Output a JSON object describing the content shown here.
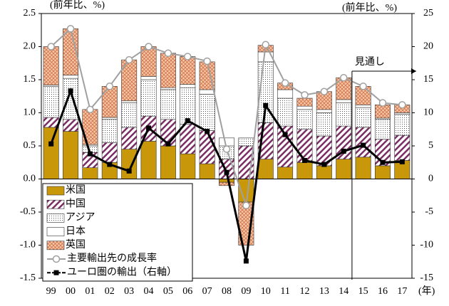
{
  "chart_data": {
    "type": "bar",
    "y_label": "(前年比、%)",
    "y2_label": "(前年比、%)",
    "x_label": "(年)",
    "annotation": "見通し",
    "categories": [
      "99",
      "00",
      "01",
      "02",
      "03",
      "04",
      "05",
      "06",
      "07",
      "08",
      "09",
      "10",
      "11",
      "12",
      "13",
      "14",
      "15",
      "16",
      "17"
    ],
    "series": [
      {
        "name": "米国",
        "color": "#c8980a",
        "pattern": "solid",
        "values": [
          0.78,
          0.72,
          0.17,
          0.25,
          0.45,
          0.57,
          0.5,
          0.38,
          0.23,
          -0.05,
          -0.35,
          0.3,
          0.18,
          0.25,
          0.2,
          0.3,
          0.33,
          0.2,
          0.28
        ]
      },
      {
        "name": "中国",
        "color": "#7a2e64",
        "pattern": "hatch",
        "values": [
          0.15,
          0.18,
          0.23,
          0.3,
          0.33,
          0.38,
          0.4,
          0.45,
          0.5,
          0.3,
          0.5,
          0.55,
          0.62,
          0.5,
          0.45,
          0.5,
          0.45,
          0.4,
          0.38
        ]
      },
      {
        "name": "アジア",
        "color": "#555555",
        "pattern": "dots",
        "values": [
          0.47,
          0.62,
          0.1,
          0.35,
          0.37,
          0.55,
          0.45,
          0.55,
          0.55,
          0.2,
          0.12,
          0.92,
          0.42,
          0.3,
          0.35,
          0.35,
          0.3,
          0.3,
          0.32
        ]
      },
      {
        "name": "日本",
        "color": "#ffffff",
        "pattern": "solid",
        "values": [
          0.02,
          0.05,
          0.02,
          0.03,
          0.03,
          0.05,
          0.03,
          0.05,
          0.07,
          0.12,
          0,
          0.15,
          0.13,
          0.05,
          0.05,
          0.05,
          0.04,
          0.02,
          0.02
        ]
      },
      {
        "name": "英国",
        "color": "#e8a070",
        "pattern": "cross",
        "values": [
          0.58,
          0.7,
          0.53,
          0.47,
          0.62,
          0.45,
          0.52,
          0.42,
          0.42,
          -0.05,
          -0.65,
          0.1,
          0.1,
          0.12,
          0.27,
          0.33,
          0.28,
          0.2,
          0.12
        ]
      },
      {
        "name": "主要輸出先の成長率",
        "kind": "line",
        "color": "#a0a0a0",
        "marker": "circle",
        "values": [
          2.0,
          2.27,
          1.05,
          1.4,
          1.8,
          2.0,
          1.9,
          1.85,
          1.78,
          0.45,
          -0.4,
          2.03,
          1.45,
          1.27,
          1.32,
          1.53,
          1.4,
          1.15,
          1.12
        ]
      },
      {
        "name": "ユーロ圏の輸出（右軸）",
        "kind": "line",
        "axis": "y2",
        "color": "#000000",
        "marker": "square",
        "values": [
          5.3,
          13.3,
          3.8,
          2.2,
          1.2,
          7.7,
          5.3,
          8.8,
          7.2,
          1.0,
          -12.4,
          11.1,
          6.7,
          2.8,
          2.2,
          4.2,
          5.1,
          2.5,
          2.6
        ]
      }
    ],
    "ylim": [
      -1.5,
      2.5
    ],
    "yticks": [
      -1.5,
      {
        "value": -1,
        "label": "-1.0"
      },
      -0.5,
      {
        "value": 0,
        "label": "0.0"
      },
      0.5,
      {
        "value": 1,
        "label": "1.0"
      },
      1.5,
      {
        "value": 2,
        "label": "2.0"
      },
      2.5
    ],
    "y2lim": [
      -15,
      25
    ],
    "y2ticks": [
      -15,
      -10,
      -5,
      0,
      5,
      10,
      15,
      20,
      25
    ],
    "forecast_from": 16
  }
}
